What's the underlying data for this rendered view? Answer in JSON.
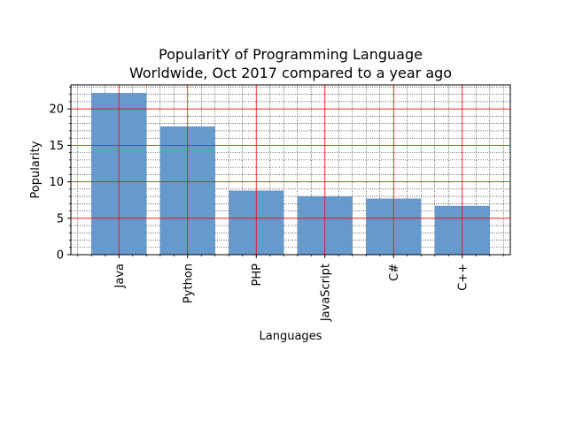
{
  "chart_data": {
    "type": "bar",
    "title_line1": "PopularitY of Programming Language",
    "title_line2": "Worldwide, Oct 2017 compared to a year ago",
    "xlabel": "Languages",
    "ylabel": "Popularity",
    "categories": [
      "Java",
      "Python",
      "PHP",
      "JavaScript",
      "C#",
      "C++"
    ],
    "values": [
      22.2,
      17.6,
      8.8,
      8.0,
      7.7,
      6.7
    ],
    "ylim": [
      0,
      23.3
    ],
    "yticks": [
      0,
      5,
      10,
      15,
      20
    ],
    "ytick_labels": [
      "0",
      "5",
      "10",
      "15",
      "20"
    ],
    "grid": {
      "major": true,
      "minor": true,
      "major_color": "#ff0000",
      "minor_color": "#000000"
    },
    "bar_color": "#6699cc"
  }
}
